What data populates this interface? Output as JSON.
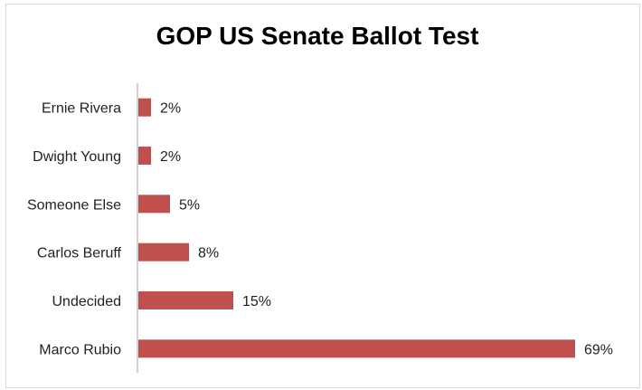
{
  "chart_data": {
    "type": "bar",
    "orientation": "horizontal",
    "title": "GOP US Senate Ballot Test",
    "categories": [
      "Ernie Rivera",
      "Dwight Young",
      "Someone Else",
      "Carlos Beruff",
      "Undecided",
      "Marco Rubio"
    ],
    "values": [
      2,
      2,
      5,
      8,
      15,
      69
    ],
    "value_labels": [
      "2%",
      "2%",
      "5%",
      "8%",
      "15%",
      "69%"
    ],
    "xlabel": "",
    "ylabel": "",
    "xlim": [
      0,
      75
    ],
    "grid": false,
    "legend": "none",
    "bar_color": "#c0504d"
  }
}
